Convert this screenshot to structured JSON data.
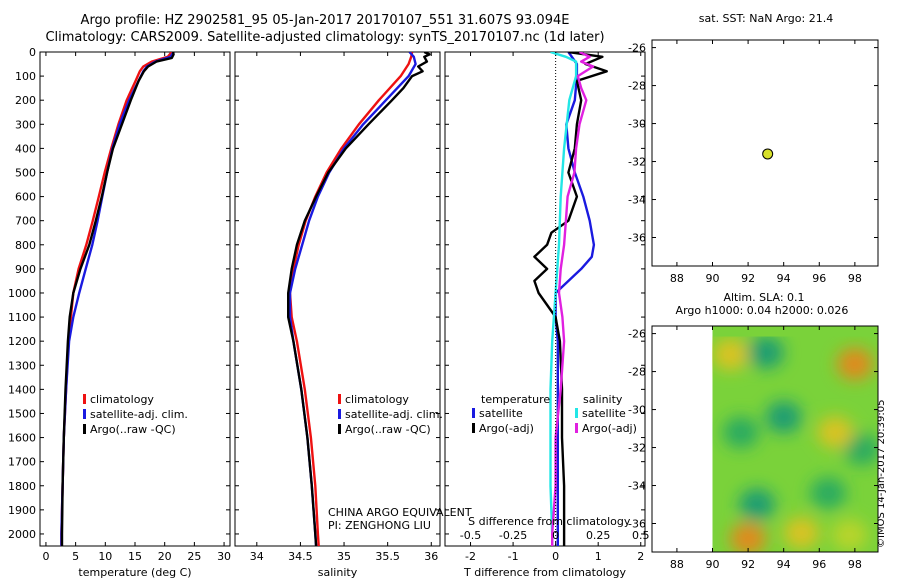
{
  "title_line1": "Argo profile: HZ 2902581_95 05-Jan-2017 20170107_551 31.607S 93.094E",
  "title_line2": "Climatology: CARS2009. Satellite-adjusted climatology: synTS_20170107.nc (1d later)",
  "sst_title": "sat. SST: NaN Argo: 21.4",
  "sla_title1": "Altim. SLA: 0.1",
  "sla_title2": "Argo h1000: 0.04 h2000: 0.026",
  "side_stamp": "©IMOS 14-Jan-2017 20:39:05",
  "institution": "CHINA ARGO EQUIVALENT",
  "pi": "PI: ZENGHONG LIU",
  "colors": {
    "climatology": "#ee1111",
    "satellite": "#1a1ae0",
    "argo": "#000000",
    "sat_salinity": "#22e6e6",
    "argo_salinity": "#e020e0",
    "float_marker": "#d7e02a"
  },
  "chart_data": [
    {
      "type": "line",
      "panel": "temperature",
      "xlabel": "temperature (deg C)",
      "ylabel": "",
      "xlim": [
        -1,
        31
      ],
      "ylim": [
        2050,
        0
      ],
      "xticks": [
        0,
        5,
        10,
        15,
        20,
        25,
        30
      ],
      "yticks": [
        0,
        100,
        200,
        300,
        400,
        500,
        600,
        700,
        800,
        900,
        1000,
        1100,
        1200,
        1300,
        1400,
        1500,
        1600,
        1700,
        1800,
        1900,
        2000
      ],
      "legend": [
        "climatology",
        "satellite-adj. clim.",
        "Argo(..raw -QC)"
      ],
      "series": [
        {
          "name": "climatology",
          "depth": [
            0,
            20,
            40,
            60,
            80,
            120,
            200,
            300,
            400,
            500,
            600,
            700,
            800,
            900,
            1000,
            1100,
            1200,
            1400,
            1600,
            1800,
            2000,
            2050
          ],
          "values": [
            21.2,
            20.5,
            17.8,
            16.4,
            15.8,
            15.1,
            13.6,
            12.2,
            11.0,
            9.9,
            8.9,
            7.9,
            6.8,
            5.5,
            4.6,
            4.2,
            3.8,
            3.4,
            3.0,
            2.8,
            2.6,
            2.6
          ]
        },
        {
          "name": "satellite-adj. clim.",
          "depth": [
            0,
            20,
            40,
            60,
            80,
            120,
            200,
            300,
            400,
            500,
            600,
            700,
            800,
            900,
            1000,
            1100,
            1200,
            1400,
            1600,
            1800,
            2000,
            2050
          ],
          "values": [
            21.5,
            21.0,
            18.4,
            17.0,
            16.4,
            15.6,
            14.0,
            12.4,
            11.2,
            10.3,
            9.5,
            8.7,
            7.8,
            6.7,
            5.6,
            4.6,
            3.9,
            3.4,
            3.0,
            2.8,
            2.6,
            2.6
          ]
        },
        {
          "name": "Argo(..raw -QC)",
          "depth": [
            0,
            10,
            25,
            40,
            60,
            80,
            120,
            200,
            300,
            400,
            500,
            600,
            700,
            800,
            900,
            1000,
            1100,
            1200,
            1400,
            1600,
            1800,
            2000,
            2050
          ],
          "values": [
            21.4,
            21.5,
            21.2,
            18.6,
            17.2,
            16.5,
            15.6,
            14.3,
            12.8,
            11.3,
            10.3,
            9.4,
            8.4,
            7.3,
            5.8,
            4.6,
            4.0,
            3.7,
            3.3,
            3.0,
            2.8,
            2.7,
            2.7
          ]
        }
      ]
    },
    {
      "type": "line",
      "panel": "salinity",
      "xlabel": "salinity",
      "ylabel": "",
      "xlim": [
        33.75,
        36.1
      ],
      "ylim": [
        2050,
        0
      ],
      "xticks": [
        34,
        34.5,
        35,
        35.5,
        36
      ],
      "xticklabels": [
        "34",
        "34.5",
        "35",
        "35.5",
        "36"
      ],
      "legend": [
        "climatology",
        "satellite-adj. clim.",
        "Argo(..raw -QC)"
      ],
      "series": [
        {
          "name": "climatology",
          "depth": [
            0,
            20,
            50,
            100,
            200,
            300,
            400,
            500,
            600,
            700,
            800,
            900,
            1000,
            1100,
            1200,
            1400,
            1600,
            1800,
            2000,
            2050
          ],
          "values": [
            35.78,
            35.77,
            35.74,
            35.65,
            35.4,
            35.17,
            34.97,
            34.8,
            34.67,
            34.56,
            34.48,
            34.42,
            34.38,
            34.4,
            34.46,
            34.55,
            34.62,
            34.67,
            34.7,
            34.71
          ]
        },
        {
          "name": "satellite-adj. clim.",
          "depth": [
            0,
            20,
            50,
            100,
            200,
            300,
            400,
            500,
            600,
            700,
            800,
            900,
            1000,
            1100,
            1200,
            1400,
            1600,
            1800,
            2000,
            2050
          ],
          "values": [
            35.75,
            35.8,
            35.82,
            35.74,
            35.48,
            35.22,
            35.0,
            34.83,
            34.7,
            34.6,
            34.52,
            34.44,
            34.38,
            34.38,
            34.42,
            34.51,
            34.58,
            34.63,
            34.67,
            34.68
          ]
        },
        {
          "name": "Argo(..raw -QC)",
          "depth": [
            0,
            10,
            20,
            40,
            60,
            80,
            100,
            150,
            200,
            300,
            400,
            500,
            600,
            700,
            800,
            900,
            1000,
            1100,
            1200,
            1400,
            1600,
            1800,
            2000,
            2050
          ],
          "values": [
            35.92,
            35.98,
            35.92,
            35.95,
            35.85,
            35.9,
            35.78,
            35.68,
            35.55,
            35.28,
            35.02,
            34.82,
            34.68,
            34.55,
            34.46,
            34.4,
            34.36,
            34.36,
            34.42,
            34.51,
            34.58,
            34.63,
            34.67,
            34.68
          ]
        }
      ]
    },
    {
      "type": "line",
      "panel": "difference",
      "xlabel": "T difference from climatology",
      "xlabel_top": "S difference from climatology",
      "xlim": [
        -2.6,
        2.1
      ],
      "ylim": [
        2050,
        0
      ],
      "xticks": [
        -2,
        -1,
        0,
        1,
        2
      ],
      "s_xticks": [
        -0.5,
        -0.25,
        0,
        0.25,
        0.5
      ],
      "s_xticklabels": [
        "-0.5",
        "-0.25",
        "0",
        "0.25",
        "0.5"
      ],
      "legend_headers": [
        "temperature",
        "salinity"
      ],
      "legend": [
        "satellite",
        "Argo(-adj)",
        "satellite",
        "Argo(-adj)"
      ],
      "series": [
        {
          "name": "satellite",
          "quantity": "temperature",
          "depth": [
            0,
            50,
            100,
            200,
            300,
            400,
            500,
            600,
            700,
            800,
            850,
            900,
            1000,
            1100,
            1200,
            1400,
            1600,
            1800,
            2000,
            2050
          ],
          "values": [
            0.3,
            0.5,
            0.5,
            0.45,
            0.25,
            0.3,
            0.45,
            0.65,
            0.8,
            0.9,
            0.85,
            0.6,
            0.0,
            0.0,
            0.05,
            0.05,
            0.05,
            0.05,
            0.05,
            0.05
          ]
        },
        {
          "name": "Argo(-adj)",
          "quantity": "temperature",
          "depth": [
            0,
            20,
            50,
            80,
            120,
            200,
            300,
            400,
            500,
            600,
            700,
            750,
            800,
            850,
            900,
            950,
            1000,
            1050,
            1100,
            1200,
            1400,
            1600,
            1800,
            2000,
            2050
          ],
          "values": [
            0.3,
            1.1,
            0.7,
            1.2,
            0.5,
            0.6,
            0.5,
            0.45,
            0.3,
            0.5,
            0.3,
            -0.1,
            -0.2,
            -0.5,
            -0.2,
            -0.5,
            -0.4,
            -0.2,
            0.0,
            0.1,
            0.15,
            0.15,
            0.2,
            0.2,
            0.2
          ]
        },
        {
          "name": "satellite",
          "quantity": "salinity",
          "depth": [
            0,
            20,
            40,
            100,
            200,
            400,
            600,
            800,
            1000,
            1200,
            1400,
            1600,
            1800,
            2000,
            2050
          ],
          "values": [
            -0.03,
            0.06,
            0.12,
            0.12,
            0.08,
            0.05,
            0.03,
            0.02,
            0.0,
            -0.02,
            -0.03,
            -0.03,
            -0.03,
            -0.02,
            -0.02
          ]
        },
        {
          "name": "Argo(-adj)",
          "quantity": "salinity",
          "depth": [
            0,
            20,
            40,
            60,
            100,
            150,
            200,
            300,
            400,
            500,
            600,
            700,
            800,
            900,
            1000,
            1100,
            1200,
            1400,
            1600,
            1800,
            2000,
            2050
          ],
          "values": [
            0.14,
            0.2,
            0.15,
            0.22,
            0.13,
            0.15,
            0.18,
            0.14,
            0.12,
            0.11,
            0.07,
            0.06,
            0.05,
            0.03,
            0.02,
            0.04,
            0.05,
            0.03,
            0.0,
            0.0,
            -0.02,
            -0.02
          ]
        }
      ]
    },
    {
      "type": "scatter",
      "panel": "sst_map",
      "title": "sat. SST: NaN Argo: 21.4",
      "xlim": [
        86.6,
        99.3
      ],
      "ylim": [
        -37.5,
        -25.6
      ],
      "xticks": [
        88,
        90,
        92,
        94,
        96,
        98
      ],
      "yticks": [
        -26,
        -28,
        -30,
        -32,
        -34,
        -36
      ],
      "points": [
        {
          "x": 93.1,
          "y": -31.6
        }
      ]
    },
    {
      "type": "heatmap",
      "panel": "sla_map",
      "title": "Altim. SLA: 0.1",
      "subtitle": "Argo h1000: 0.04 h2000: 0.026",
      "xlim": [
        86.6,
        99.3
      ],
      "ylim": [
        -37.5,
        -25.6
      ],
      "xticks": [
        88,
        90,
        92,
        94,
        96,
        98
      ],
      "yticks": [
        -26,
        -28,
        -30,
        -32,
        -34,
        -36
      ],
      "data_xrange": [
        90,
        99.3
      ],
      "features": [
        {
          "x": 98.0,
          "y": -27.6,
          "value": 0.45
        },
        {
          "x": 92.0,
          "y": -36.8,
          "value": 0.4
        },
        {
          "x": 91.0,
          "y": -27.1,
          "value": 0.3
        },
        {
          "x": 93.0,
          "y": -27.0,
          "value": -0.45
        },
        {
          "x": 94.0,
          "y": -30.4,
          "value": -0.45
        },
        {
          "x": 92.5,
          "y": -35.0,
          "value": -0.4
        },
        {
          "x": 96.5,
          "y": -34.4,
          "value": -0.35
        },
        {
          "x": 98.4,
          "y": -32.1,
          "value": -0.35
        },
        {
          "x": 91.6,
          "y": -31.2,
          "value": -0.3
        },
        {
          "x": 95.0,
          "y": -36.5,
          "value": 0.3
        },
        {
          "x": 96.9,
          "y": -31.2,
          "value": 0.25
        },
        {
          "x": 97.7,
          "y": -36.6,
          "value": 0.2
        }
      ]
    }
  ]
}
